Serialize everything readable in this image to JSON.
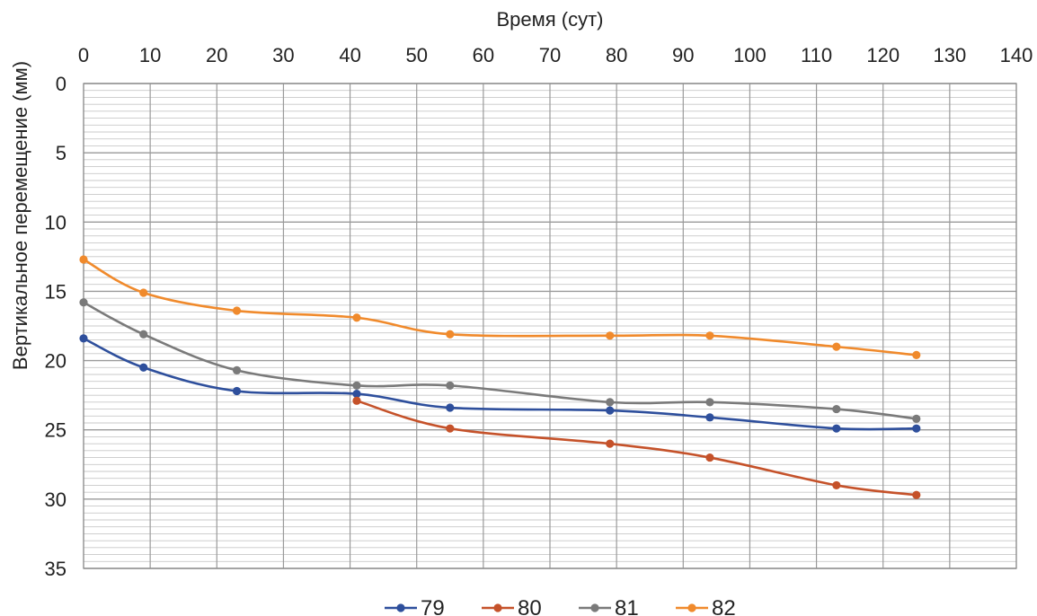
{
  "chart_data": {
    "type": "line",
    "title": "",
    "xlabel": "Время (сут)",
    "ylabel": "Вертикальное перемещение (мм)",
    "x_axis_position": "top",
    "y_axis_inverted": true,
    "xlim": [
      0,
      140
    ],
    "ylim": [
      0,
      35
    ],
    "x_major_step": 10,
    "y_major_step": 5,
    "y_minor_step": 0.5,
    "grid": true,
    "x_ticks": [
      "0",
      "10",
      "20",
      "30",
      "40",
      "50",
      "60",
      "70",
      "80",
      "90",
      "100",
      "110",
      "120",
      "130",
      "140"
    ],
    "y_ticks": [
      "0",
      "5",
      "10",
      "15",
      "20",
      "25",
      "30",
      "35"
    ],
    "legend_position": "bottom",
    "series": [
      {
        "name": "79",
        "color": "#2e4f9c",
        "points": [
          [
            0,
            18.4
          ],
          [
            9,
            20.5
          ],
          [
            23,
            22.2
          ],
          [
            41,
            22.4
          ],
          [
            55,
            23.4
          ],
          [
            79,
            23.6
          ],
          [
            94,
            24.1
          ],
          [
            113,
            24.9
          ],
          [
            125,
            24.9
          ]
        ]
      },
      {
        "name": "80",
        "color": "#c5522a",
        "points": [
          [
            41,
            22.9
          ],
          [
            55,
            24.9
          ],
          [
            79,
            26.0
          ],
          [
            94,
            27.0
          ],
          [
            113,
            29.0
          ],
          [
            125,
            29.7
          ]
        ]
      },
      {
        "name": "81",
        "color": "#7a7a7a",
        "points": [
          [
            0,
            15.8
          ],
          [
            9,
            18.1
          ],
          [
            23,
            20.7
          ],
          [
            41,
            21.8
          ],
          [
            55,
            21.8
          ],
          [
            79,
            23.0
          ],
          [
            94,
            23.0
          ],
          [
            113,
            23.5
          ],
          [
            125,
            24.2
          ]
        ]
      },
      {
        "name": "82",
        "color": "#f08a2c",
        "points": [
          [
            0,
            12.7
          ],
          [
            9,
            15.1
          ],
          [
            23,
            16.4
          ],
          [
            41,
            16.9
          ],
          [
            55,
            18.1
          ],
          [
            79,
            18.2
          ],
          [
            94,
            18.2
          ],
          [
            113,
            19.0
          ],
          [
            125,
            19.6
          ]
        ]
      }
    ]
  }
}
